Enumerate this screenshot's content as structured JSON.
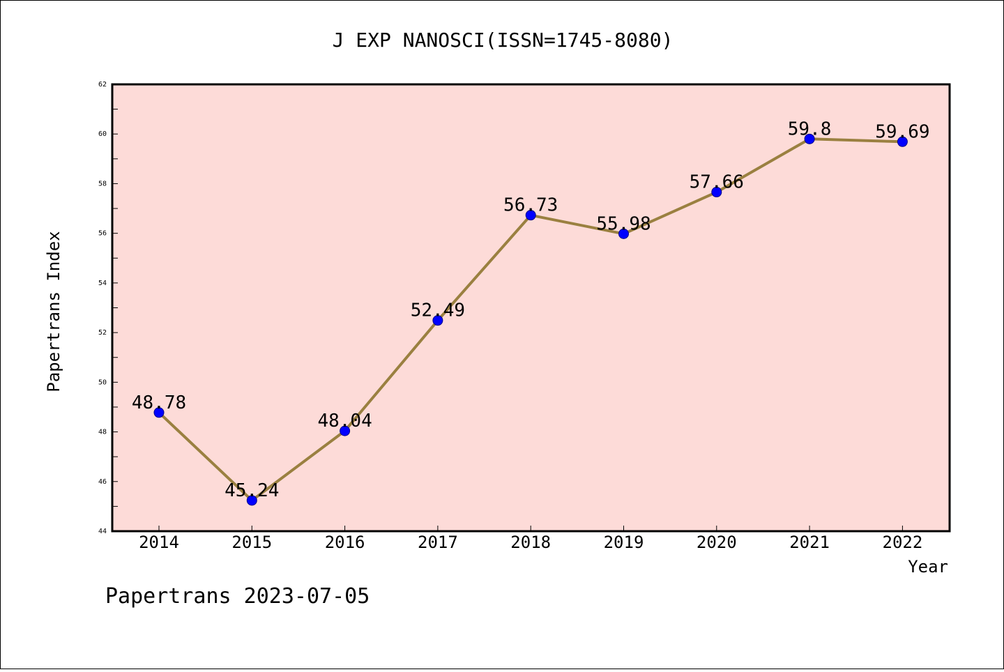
{
  "chart_data": {
    "type": "line",
    "title": "J EXP NANOSCI(ISSN=1745-8080)",
    "xlabel": "Year",
    "ylabel": "Papertrans Index",
    "footer": "Papertrans 2023-07-05",
    "categories": [
      "2014",
      "2015",
      "2016",
      "2017",
      "2018",
      "2019",
      "2020",
      "2021",
      "2022"
    ],
    "series": [
      {
        "values": [
          48.78,
          45.24,
          48.04,
          52.49,
          56.73,
          55.98,
          57.66,
          59.8,
          59.69
        ],
        "labels": [
          "48.78",
          "45.24",
          "48.04",
          "52.49",
          "56.73",
          "55.98",
          "57.66",
          "59.8",
          "59.69"
        ]
      }
    ],
    "ylim": [
      44,
      62
    ],
    "yticks": [
      "44",
      "46",
      "48",
      "50",
      "52",
      "54",
      "56",
      "58",
      "60",
      "62"
    ],
    "grid": false,
    "colors": {
      "plot_background": "#fddbd8",
      "line": "#9a8040",
      "marker": "#0000ff",
      "marker_edge": "#00008b"
    }
  }
}
